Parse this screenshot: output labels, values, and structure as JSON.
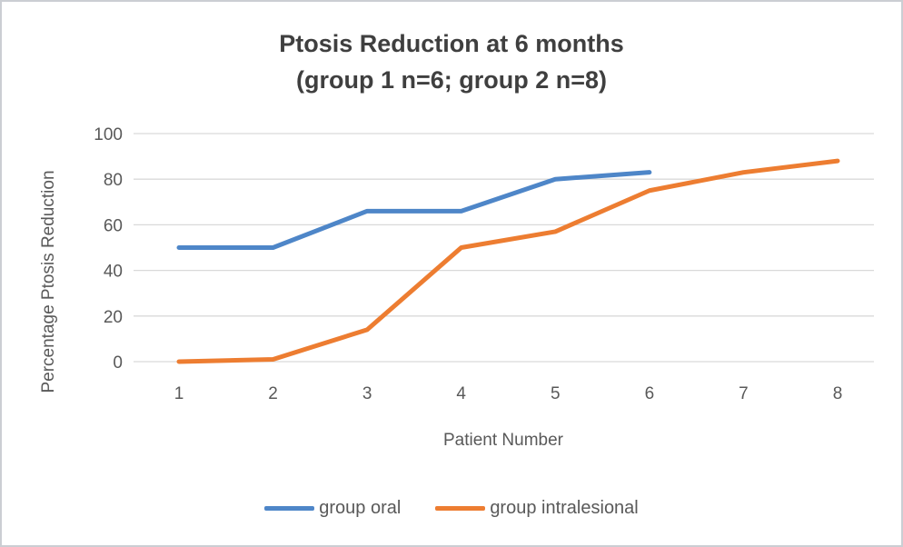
{
  "frame": {
    "background": "#ffffff",
    "border_color": "#cbced3",
    "text_color": "#595959",
    "gridline_color": "#d9d9d9"
  },
  "chart_data": {
    "type": "line",
    "title": "Ptosis Reduction at 6 months",
    "subtitle": "(group 1 n=6; group 2 n=8)",
    "xlabel": "Patient Number",
    "ylabel": "Percentage Ptosis Reduction",
    "x": [
      1,
      2,
      3,
      4,
      5,
      6,
      7,
      8
    ],
    "y_ticks": [
      0,
      20,
      40,
      60,
      80,
      100
    ],
    "ylim": [
      0,
      100
    ],
    "grid": true,
    "legend_position": "bottom",
    "series": [
      {
        "name": "group oral",
        "color": "#4E86C8",
        "x": [
          1,
          2,
          3,
          4,
          5,
          6
        ],
        "values": [
          50,
          50,
          66,
          66,
          80,
          83
        ]
      },
      {
        "name": "group intralesional",
        "color": "#ED7D31",
        "x": [
          1,
          2,
          3,
          4,
          5,
          6,
          7,
          8
        ],
        "values": [
          0,
          1,
          14,
          50,
          57,
          75,
          83,
          88
        ]
      }
    ]
  }
}
